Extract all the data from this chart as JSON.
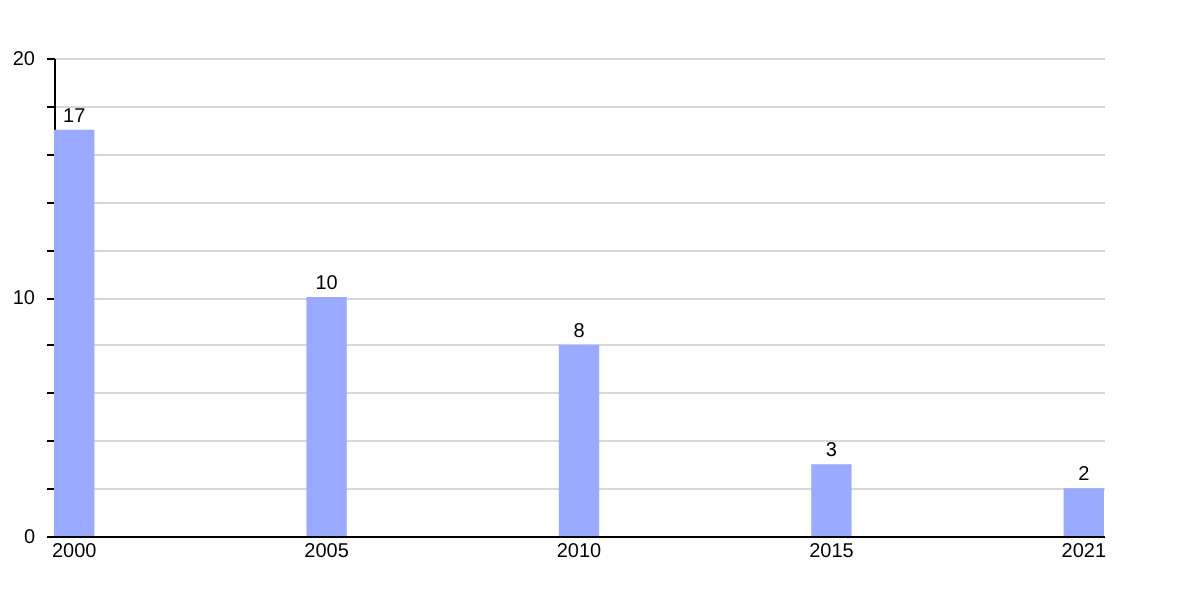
{
  "chart_data": {
    "type": "bar",
    "categories": [
      "2000",
      "2005",
      "2010",
      "2015",
      "2021"
    ],
    "values": [
      17,
      10,
      8,
      3,
      2
    ],
    "color": "#99aaff",
    "ylim": [
      0,
      20
    ],
    "yticks": [
      0,
      {
        "value": 2,
        "label": null
      },
      {
        "value": 4,
        "label": null
      },
      {
        "value": 6,
        "label": null
      },
      {
        "value": 8,
        "label": null
      },
      10,
      {
        "value": 12,
        "label": null
      },
      {
        "value": 14,
        "label": null
      },
      {
        "value": 16,
        "label": null
      },
      {
        "value": 18,
        "label": null
      },
      20
    ],
    "grid": true,
    "data_labels": true
  }
}
